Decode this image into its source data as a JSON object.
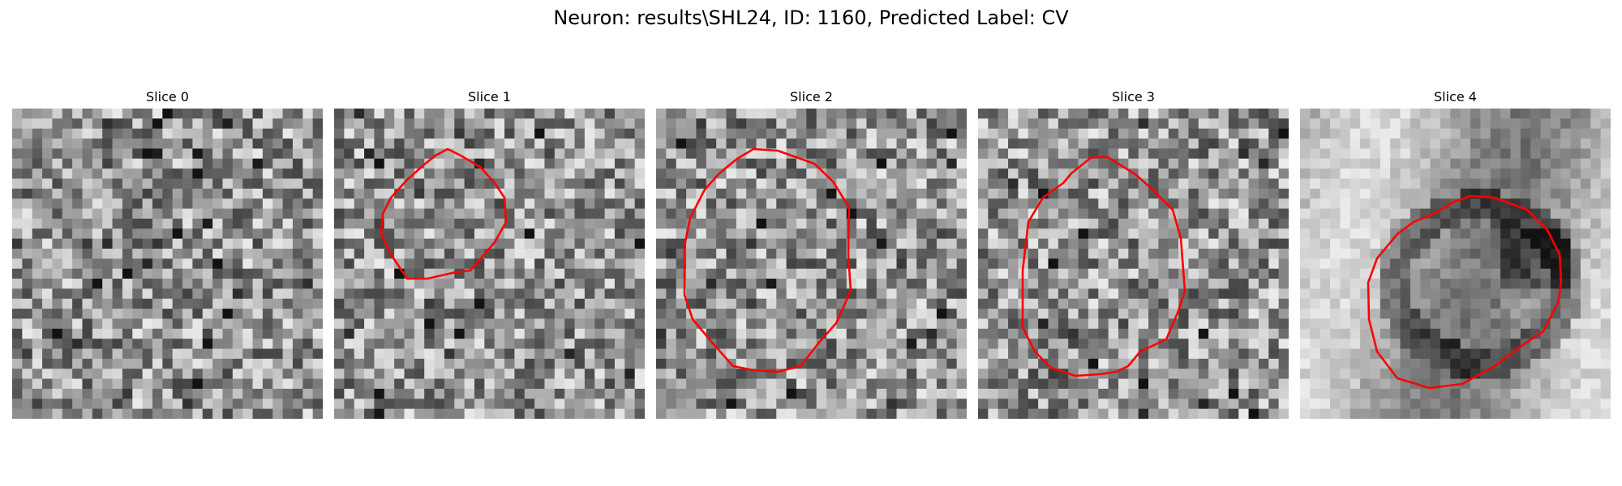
{
  "figure": {
    "title": "Neuron: results\\SHL24, ID: 1160, Predicted Label: CV"
  },
  "panels": [
    {
      "title": "Slice 0",
      "has_contour": false,
      "seed": 11,
      "style": "noise"
    },
    {
      "title": "Slice 1",
      "has_contour": true,
      "seed": 23,
      "style": "noise"
    },
    {
      "title": "Slice 2",
      "has_contour": true,
      "seed": 37,
      "style": "noise"
    },
    {
      "title": "Slice 3",
      "has_contour": true,
      "seed": 51,
      "style": "noise"
    },
    {
      "title": "Slice 4",
      "has_contour": true,
      "seed": 67,
      "style": "smooth"
    }
  ],
  "colors": {
    "contour": "#ff0000",
    "background": "#ffffff"
  }
}
